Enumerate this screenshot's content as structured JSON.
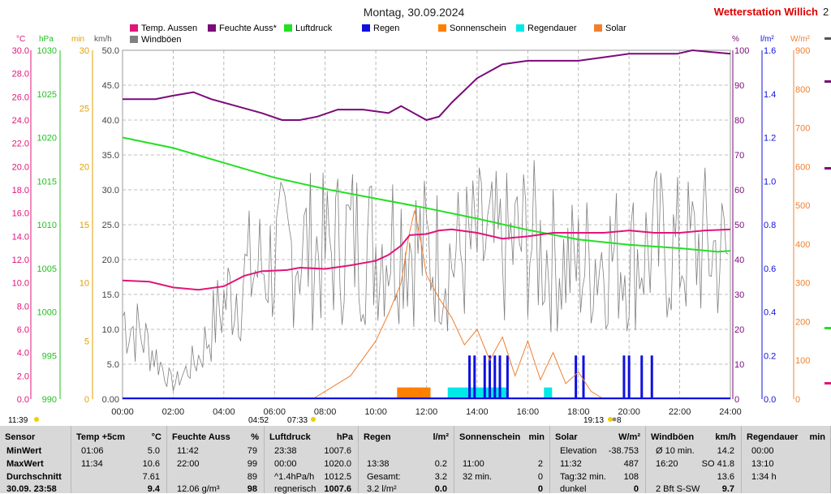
{
  "header": {
    "title": "Montag, 30.09.2024",
    "station": "Wetterstation Willich",
    "station_tail": "2"
  },
  "axis_units": {
    "temp": "°C",
    "pressure": "hPa",
    "minutes": "min",
    "wind": "km/h",
    "humidity": "%",
    "rain": "l/m²",
    "solar": "W/m²"
  },
  "colors": {
    "temp": "#e0157a",
    "humidity": "#7a0a7a",
    "pressure": "#22e022",
    "rain": "#1010e0",
    "sunshine": "#ff8000",
    "raindur": "#00e8e8",
    "solar": "#f08030",
    "wind": "#808080",
    "station": "#dd0000"
  },
  "markers": {
    "left": "11:39",
    "sunrise_icon": "04:52",
    "sunrise": "07:33",
    "sunset": "19:13",
    "sunset_tail": "8"
  },
  "chart_data": {
    "type": "line",
    "x_range": [
      "00:00",
      "24:00"
    ],
    "xticks": [
      "00:00",
      "02:00",
      "04:00",
      "06:00",
      "08:00",
      "10:00",
      "12:00",
      "14:00",
      "16:00",
      "18:00",
      "20:00",
      "22:00",
      "24:00"
    ],
    "grid": true,
    "legend": [
      {
        "name": "Temp. Aussen",
        "color": "#e0157a"
      },
      {
        "name": "Feuchte Auss*",
        "color": "#7a0a7a"
      },
      {
        "name": "Luftdruck",
        "color": "#22e022"
      },
      {
        "name": "Regen",
        "color": "#1010e0"
      },
      {
        "name": "Sonnenschein",
        "color": "#ff8000"
      },
      {
        "name": "Regendauer",
        "color": "#00e8e8"
      },
      {
        "name": "Solar",
        "color": "#f08030"
      },
      {
        "name": "Windböen",
        "color": "#808080"
      }
    ],
    "axes": {
      "temp": {
        "ylim": [
          0,
          30
        ],
        "ticks": [
          "30.0",
          "28.0",
          "26.0",
          "24.0",
          "22.0",
          "20.0",
          "18.0",
          "16.0",
          "14.0",
          "12.0",
          "10.0",
          "8.0",
          "6.0",
          "4.0",
          "2.0",
          "0.0"
        ]
      },
      "pressure": {
        "ylim": [
          990,
          1030
        ],
        "ticks": [
          "1030",
          "1025",
          "1020",
          "1015",
          "1010",
          "1005",
          "1000",
          "995",
          "990"
        ]
      },
      "minutes": {
        "ylim": [
          0,
          30
        ],
        "ticks": [
          "30",
          "25",
          "20",
          "15",
          "10",
          "5",
          "0"
        ]
      },
      "wind": {
        "ylim": [
          0,
          50
        ],
        "ticks": [
          "50.0",
          "45.0",
          "40.0",
          "35.0",
          "30.0",
          "25.0",
          "20.0",
          "15.0",
          "10.0",
          "5.0",
          "0.00"
        ]
      },
      "humidity": {
        "ylim": [
          0,
          100
        ],
        "ticks": [
          "100",
          "90",
          "80",
          "70",
          "60",
          "50",
          "40",
          "30",
          "20",
          "10",
          "0"
        ]
      },
      "rain": {
        "ylim": [
          0,
          1.6
        ],
        "ticks": [
          "1.6",
          "1.4",
          "1.2",
          "1.0",
          "0.8",
          "0.6",
          "0.4",
          "0.2",
          "0.0"
        ]
      },
      "solar": {
        "ylim": [
          0,
          900
        ],
        "ticks": [
          "900",
          "800",
          "700",
          "600",
          "500",
          "400",
          "300",
          "200",
          "100",
          "0"
        ]
      }
    },
    "series": [
      {
        "name": "Temp. Aussen",
        "axis": "temp",
        "color": "#e0157a",
        "x": [
          0,
          1.06,
          2,
          3,
          4,
          4.8,
          5.5,
          6.5,
          7,
          8,
          9,
          10,
          10.5,
          11,
          11.34,
          12,
          12.5,
          13,
          14,
          15,
          16,
          17,
          18,
          19,
          20,
          21,
          22,
          23,
          24
        ],
        "y": [
          10.2,
          10.1,
          9.6,
          9.4,
          9.7,
          10.6,
          11.0,
          11.1,
          11.3,
          11.2,
          11.5,
          11.9,
          12.4,
          13.2,
          14.1,
          14.2,
          14.5,
          14.6,
          14.3,
          13.8,
          14.0,
          14.3,
          14.3,
          14.3,
          14.5,
          14.3,
          14.3,
          14.5,
          14.6
        ]
      },
      {
        "name": "Feuchte Auss*",
        "axis": "humidity",
        "color": "#7a0a7a",
        "x": [
          0,
          1.3,
          2,
          2.8,
          3.5,
          4.5,
          5.5,
          6.3,
          7,
          7.7,
          8.5,
          9.5,
          10.5,
          11,
          12,
          12.5,
          13,
          14,
          15,
          16,
          17,
          18,
          19,
          20,
          21,
          21.9,
          22.5,
          24
        ],
        "y": [
          86,
          86,
          87,
          88,
          86,
          84,
          82,
          80,
          80,
          81,
          83,
          83,
          82,
          84,
          80,
          81,
          85,
          92,
          96,
          97,
          97,
          97,
          98,
          99,
          99,
          99,
          100,
          99
        ]
      },
      {
        "name": "Luftdruck",
        "axis": "pressure",
        "color": "#22e022",
        "x": [
          0,
          2,
          4,
          6,
          8,
          10,
          12,
          14,
          16,
          18,
          20,
          22,
          23.5,
          24
        ],
        "y": [
          1020.0,
          1018.8,
          1017.1,
          1015.4,
          1014.1,
          1013.0,
          1011.9,
          1010.7,
          1009.4,
          1008.3,
          1007.7,
          1007.3,
          1006.9,
          1007.0
        ]
      },
      {
        "name": "Solar",
        "axis": "solar",
        "color": "#f08030",
        "x": [
          7.5,
          8,
          9,
          10,
          10.5,
          11,
          11.3,
          11.53,
          11.8,
          12,
          12.5,
          13,
          13.5,
          14,
          14.5,
          15,
          15.5,
          16,
          16.5,
          17,
          17.5,
          18,
          18.5,
          19
        ],
        "y": [
          0,
          20,
          60,
          150,
          220,
          300,
          420,
          487,
          400,
          320,
          260,
          210,
          140,
          180,
          100,
          160,
          60,
          150,
          50,
          120,
          40,
          70,
          20,
          0
        ]
      },
      {
        "name": "Windböen",
        "axis": "wind",
        "color": "#808080",
        "x": [
          0,
          1,
          2,
          3,
          4,
          5,
          6,
          7,
          8,
          9,
          10,
          11,
          12,
          13,
          14,
          15,
          16,
          17,
          18,
          19,
          20,
          21,
          22,
          23,
          24
        ],
        "y": [
          12,
          8,
          2,
          6,
          14,
          18,
          20,
          22,
          21,
          23,
          22,
          24,
          21,
          20,
          22,
          21,
          23,
          20,
          19,
          21,
          20,
          22,
          21,
          22,
          20
        ]
      },
      {
        "name": "Sonnenschein",
        "axis": "minutes",
        "color": "#ff8000",
        "x": [
          11.0,
          11.3,
          11.5,
          11.7,
          12.0
        ],
        "y": [
          1.0,
          1.0,
          1.0,
          1.0,
          1.0
        ]
      },
      {
        "name": "Regendauer",
        "axis": "minutes",
        "color": "#00e8e8",
        "x": [
          13.0,
          13.3,
          13.6,
          13.8,
          14.0,
          14.3,
          14.6,
          14.9,
          15.0,
          16.8
        ],
        "y": [
          1.0,
          1.0,
          1.0,
          1.0,
          1.0,
          1.0,
          1.0,
          1.0,
          1.0,
          1.0
        ]
      },
      {
        "name": "Regen",
        "axis": "rain",
        "color": "#1010e0",
        "x": [
          13.7,
          13.9,
          14.3,
          14.5,
          14.7,
          14.9,
          15.2,
          17.9,
          18.2,
          19.8,
          20.0,
          20.5,
          20.9
        ],
        "y": [
          0.2,
          0.2,
          0.2,
          0.2,
          0.2,
          0.2,
          0.2,
          0.2,
          0.2,
          0.2,
          0.2,
          0.2,
          0.2
        ]
      }
    ]
  },
  "table": {
    "columns": [
      {
        "id": "sensor",
        "header": "Sensor",
        "unit": "",
        "rows": [
          {
            "a": "MinWert"
          },
          {
            "a": "MaxWert"
          },
          {
            "a": "Durchschnitt"
          },
          {
            "a": "30.09. 23:58"
          }
        ]
      },
      {
        "id": "temp",
        "header": "Temp +5cm",
        "unit": "°C",
        "rows": [
          {
            "a": "01:06",
            "b": "5.0"
          },
          {
            "a": "11:34",
            "b": "10.6"
          },
          {
            "a": "",
            "b": "7.61"
          },
          {
            "a": "",
            "b": "9.4"
          }
        ]
      },
      {
        "id": "hum",
        "header": "Feuchte Auss",
        "unit": "%",
        "rows": [
          {
            "a": "11:42",
            "b": "79"
          },
          {
            "a": "22:00",
            "b": "99"
          },
          {
            "a": "",
            "b": "89"
          },
          {
            "a": "12.06 g/m³",
            "b": "98"
          }
        ]
      },
      {
        "id": "press",
        "header": "Luftdruck",
        "unit": "hPa",
        "rows": [
          {
            "a": "23:38",
            "b": "1007.6"
          },
          {
            "a": "00:00",
            "b": "1020.0"
          },
          {
            "a": "^1.4hPa/h",
            "b": "1012.5"
          },
          {
            "a": "regnerisch",
            "b": "1007.6"
          }
        ]
      },
      {
        "id": "rain",
        "header": "Regen",
        "unit": "l/m²",
        "rows": [
          {
            "a": "",
            "b": ""
          },
          {
            "a": "13:38",
            "b": "0.2"
          },
          {
            "a": "Gesamt:",
            "b": "3.2"
          },
          {
            "a": "3.2 l/m²",
            "b": "0.0"
          }
        ]
      },
      {
        "id": "sun",
        "header": "Sonnenschein",
        "unit": "min",
        "rows": [
          {
            "a": "",
            "b": ""
          },
          {
            "a": "11:00",
            "b": "2"
          },
          {
            "a": "32 min.",
            "b": "0"
          },
          {
            "a": "",
            "b": "0"
          }
        ]
      },
      {
        "id": "solar",
        "header": "Solar",
        "unit": "W/m²",
        "rows": [
          {
            "a": "Elevation",
            "b": "-38.753"
          },
          {
            "a": "11:32",
            "b": "487"
          },
          {
            "a": "Tag:32 min.",
            "b": "108"
          },
          {
            "a": "dunkel",
            "b": "0"
          }
        ]
      },
      {
        "id": "wind",
        "header": "Windböen",
        "unit": "km/h",
        "rows": [
          {
            "a": "Ø 10 min.",
            "b": "14.2"
          },
          {
            "a": "16:20",
            "b": "SO 41.8"
          },
          {
            "a": "",
            "b": "13.6"
          },
          {
            "a": "2 Bft S-SW",
            "b": "9.7"
          }
        ]
      },
      {
        "id": "raindur",
        "header": "Regendauer",
        "unit": "min",
        "rows": [
          {
            "a": "00:00",
            "b": ""
          },
          {
            "a": "13:10",
            "b": ""
          },
          {
            "a": "1:34 h",
            "b": ""
          },
          {
            "a": "",
            "b": ""
          }
        ]
      }
    ]
  }
}
